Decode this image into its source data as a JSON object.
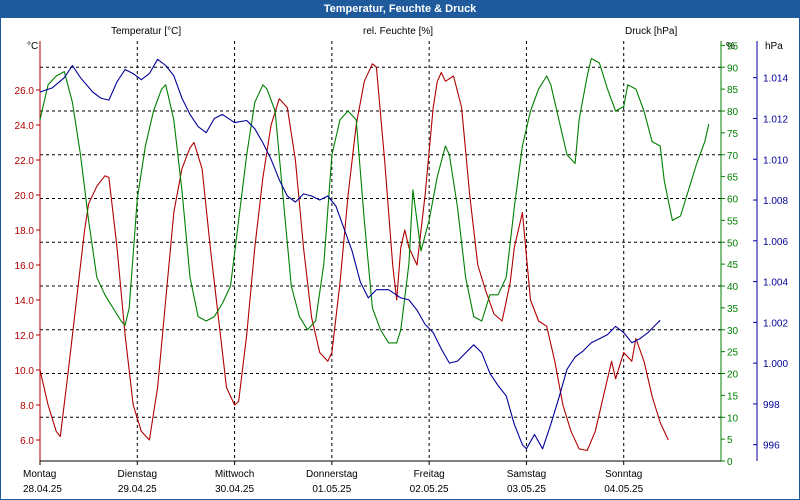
{
  "title": "Temperatur, Feuchte & Druck",
  "colors": {
    "temperature": "#b00000",
    "humidity": "#008000",
    "pressure": "#000099",
    "titlebar": "#1e5a9c"
  },
  "chart_data": {
    "type": "line",
    "title": "Temperatur, Feuchte & Druck",
    "x_unit": "hours since 28.04.25 00:00",
    "x_range": [
      0,
      168
    ],
    "x_days": [
      {
        "weekday": "Montag",
        "date": "28.04.25"
      },
      {
        "weekday": "Dienstag",
        "date": "29.04.25"
      },
      {
        "weekday": "Mittwoch",
        "date": "30.04.25"
      },
      {
        "weekday": "Donnerstag",
        "date": "01.05.25"
      },
      {
        "weekday": "Freitag",
        "date": "02.05.25"
      },
      {
        "weekday": "Samstag",
        "date": "03.05.25"
      },
      {
        "weekday": "Sonntag",
        "date": "04.05.25"
      }
    ],
    "axes": {
      "temperature": {
        "label": "Temperatur [°C]",
        "unit": "°C",
        "range": [
          4.8,
          28.8
        ],
        "ticks": [
          "6.0",
          "8.0",
          "10.0",
          "12.0",
          "14.0",
          "16.0",
          "18.0",
          "20.0",
          "22.0",
          "24.0",
          "26.0"
        ]
      },
      "humidity": {
        "label": "rel. Feuchte [%]",
        "unit": "%",
        "range": [
          0,
          96
        ],
        "ticks": [
          "0",
          "5",
          "10",
          "15",
          "20",
          "25",
          "30",
          "35",
          "40",
          "45",
          "50",
          "55",
          "60",
          "65",
          "70",
          "75",
          "80",
          "85",
          "90",
          "95"
        ]
      },
      "pressure": {
        "label": "Druck [hPa]",
        "unit": "hPa",
        "range": [
          995.2,
          1015.8
        ],
        "ticks": [
          "996",
          "998",
          "1.000",
          "1.002",
          "1.004",
          "1.006",
          "1.008",
          "1.010",
          "1.012",
          "1.014"
        ]
      }
    },
    "series": [
      {
        "name": "Temperatur",
        "axis": "temperature",
        "points": [
          [
            0,
            10
          ],
          [
            2,
            8
          ],
          [
            4,
            6.5
          ],
          [
            5,
            6.2
          ],
          [
            7,
            10
          ],
          [
            9,
            14
          ],
          [
            11,
            18
          ],
          [
            12,
            19.5
          ],
          [
            14,
            20.5
          ],
          [
            16,
            21.1
          ],
          [
            17,
            21
          ],
          [
            19,
            17
          ],
          [
            21,
            12
          ],
          [
            23,
            8
          ],
          [
            25,
            6.5
          ],
          [
            27,
            6
          ],
          [
            29,
            9
          ],
          [
            31,
            14
          ],
          [
            33,
            19
          ],
          [
            35,
            21.5
          ],
          [
            37,
            22.7
          ],
          [
            38,
            23
          ],
          [
            40,
            21.5
          ],
          [
            42,
            17
          ],
          [
            44,
            13
          ],
          [
            46,
            9
          ],
          [
            48,
            8
          ],
          [
            49,
            8.2
          ],
          [
            51,
            12
          ],
          [
            53,
            17
          ],
          [
            55,
            21
          ],
          [
            57,
            24
          ],
          [
            59,
            25.5
          ],
          [
            61,
            25
          ],
          [
            63,
            22
          ],
          [
            65,
            17
          ],
          [
            67,
            13
          ],
          [
            69,
            11
          ],
          [
            71,
            10.5
          ],
          [
            72,
            11
          ],
          [
            74,
            15
          ],
          [
            76,
            20
          ],
          [
            78,
            24
          ],
          [
            80,
            26.5
          ],
          [
            82,
            27.5
          ],
          [
            83,
            27.3
          ],
          [
            85,
            22
          ],
          [
            87,
            16
          ],
          [
            88,
            14
          ],
          [
            89,
            17
          ],
          [
            90,
            18
          ],
          [
            91,
            17
          ],
          [
            93,
            16
          ],
          [
            95,
            20
          ],
          [
            97,
            25
          ],
          [
            98,
            26.5
          ],
          [
            99,
            27
          ],
          [
            100,
            26.5
          ],
          [
            102,
            26.8
          ],
          [
            104,
            25
          ],
          [
            106,
            20
          ],
          [
            108,
            16
          ],
          [
            110,
            14.5
          ],
          [
            112,
            13.2
          ],
          [
            114,
            12.8
          ],
          [
            116,
            15
          ],
          [
            117,
            17
          ],
          [
            119,
            19
          ],
          [
            121,
            14
          ],
          [
            123,
            12.8
          ],
          [
            125,
            12.5
          ],
          [
            127,
            10.5
          ],
          [
            129,
            8
          ],
          [
            131,
            6.5
          ],
          [
            133,
            5.5
          ],
          [
            135,
            5.4
          ],
          [
            137,
            6.5
          ],
          [
            139,
            8.5
          ],
          [
            141,
            10.5
          ],
          [
            142,
            9.5
          ],
          [
            144,
            11
          ],
          [
            146,
            10.5
          ],
          [
            147,
            11.8
          ],
          [
            149,
            10.5
          ],
          [
            151,
            8.5
          ],
          [
            153,
            7
          ],
          [
            155,
            6
          ]
        ]
      },
      {
        "name": "rel. Feuchte",
        "axis": "humidity",
        "points": [
          [
            0,
            78
          ],
          [
            2,
            86
          ],
          [
            4,
            88
          ],
          [
            6,
            89
          ],
          [
            8,
            82
          ],
          [
            10,
            70
          ],
          [
            12,
            55
          ],
          [
            14,
            42
          ],
          [
            16,
            38
          ],
          [
            18,
            35
          ],
          [
            20,
            32
          ],
          [
            21,
            31
          ],
          [
            22,
            35
          ],
          [
            24,
            60
          ],
          [
            26,
            72
          ],
          [
            28,
            80
          ],
          [
            30,
            85
          ],
          [
            31,
            86
          ],
          [
            33,
            78
          ],
          [
            35,
            62
          ],
          [
            37,
            42
          ],
          [
            39,
            33
          ],
          [
            41,
            32
          ],
          [
            43,
            33
          ],
          [
            45,
            36
          ],
          [
            47,
            40
          ],
          [
            49,
            55
          ],
          [
            51,
            70
          ],
          [
            53,
            82
          ],
          [
            55,
            86
          ],
          [
            56,
            85
          ],
          [
            58,
            80
          ],
          [
            60,
            60
          ],
          [
            62,
            40
          ],
          [
            64,
            33
          ],
          [
            66,
            30
          ],
          [
            68,
            32
          ],
          [
            70,
            45
          ],
          [
            72,
            70
          ],
          [
            74,
            78
          ],
          [
            76,
            80
          ],
          [
            78,
            78
          ],
          [
            80,
            55
          ],
          [
            82,
            35
          ],
          [
            84,
            30
          ],
          [
            86,
            27
          ],
          [
            88,
            27
          ],
          [
            89,
            30
          ],
          [
            91,
            45
          ],
          [
            92,
            62
          ],
          [
            94,
            48
          ],
          [
            96,
            55
          ],
          [
            98,
            65
          ],
          [
            100,
            72
          ],
          [
            101,
            70
          ],
          [
            103,
            58
          ],
          [
            105,
            42
          ],
          [
            107,
            33
          ],
          [
            109,
            32
          ],
          [
            111,
            38
          ],
          [
            113,
            38
          ],
          [
            115,
            42
          ],
          [
            117,
            58
          ],
          [
            119,
            72
          ],
          [
            121,
            80
          ],
          [
            123,
            85
          ],
          [
            125,
            88
          ],
          [
            126,
            86
          ],
          [
            128,
            78
          ],
          [
            130,
            70
          ],
          [
            132,
            68
          ],
          [
            133,
            78
          ],
          [
            135,
            88
          ],
          [
            136,
            92
          ],
          [
            138,
            91
          ],
          [
            140,
            85
          ],
          [
            142,
            80
          ],
          [
            144,
            81
          ],
          [
            145,
            86
          ],
          [
            147,
            85
          ],
          [
            149,
            80
          ],
          [
            151,
            73
          ],
          [
            153,
            72
          ],
          [
            154,
            64
          ],
          [
            156,
            55
          ],
          [
            158,
            56
          ],
          [
            160,
            62
          ],
          [
            162,
            68
          ],
          [
            164,
            73
          ],
          [
            165,
            77
          ]
        ]
      },
      {
        "name": "Druck",
        "axis": "pressure",
        "points": [
          [
            0,
            1013.3
          ],
          [
            3,
            1013.5
          ],
          [
            6,
            1014.0
          ],
          [
            8,
            1014.6
          ],
          [
            10,
            1014.0
          ],
          [
            13,
            1013.3
          ],
          [
            15,
            1013.0
          ],
          [
            17,
            1012.9
          ],
          [
            19,
            1013.8
          ],
          [
            21,
            1014.4
          ],
          [
            23,
            1014.2
          ],
          [
            25,
            1013.9
          ],
          [
            27,
            1014.2
          ],
          [
            29,
            1014.9
          ],
          [
            31,
            1014.6
          ],
          [
            33,
            1014.1
          ],
          [
            35,
            1013.0
          ],
          [
            37,
            1012.2
          ],
          [
            39,
            1011.6
          ],
          [
            41,
            1011.3
          ],
          [
            43,
            1012.0
          ],
          [
            45,
            1012.2
          ],
          [
            48,
            1011.8
          ],
          [
            51,
            1011.9
          ],
          [
            53,
            1011.5
          ],
          [
            55,
            1010.8
          ],
          [
            57,
            1010.0
          ],
          [
            59,
            1009.0
          ],
          [
            61,
            1008.2
          ],
          [
            63,
            1007.9
          ],
          [
            65,
            1008.3
          ],
          [
            67,
            1008.2
          ],
          [
            69,
            1008.0
          ],
          [
            71,
            1008.2
          ],
          [
            73,
            1007.7
          ],
          [
            75,
            1006.6
          ],
          [
            77,
            1005.5
          ],
          [
            79,
            1004.0
          ],
          [
            81,
            1003.2
          ],
          [
            83,
            1003.6
          ],
          [
            86,
            1003.6
          ],
          [
            89,
            1003.2
          ],
          [
            91,
            1003.1
          ],
          [
            93,
            1002.6
          ],
          [
            95,
            1001.9
          ],
          [
            97,
            1001.5
          ],
          [
            99,
            1000.7
          ],
          [
            101,
            1000.0
          ],
          [
            103,
            1000.1
          ],
          [
            105,
            1000.5
          ],
          [
            107,
            1000.9
          ],
          [
            109,
            1000.5
          ],
          [
            111,
            999.5
          ],
          [
            113,
            998.9
          ],
          [
            115,
            998.4
          ],
          [
            117,
            997.0
          ],
          [
            119,
            996.0
          ],
          [
            120,
            995.8
          ],
          [
            122,
            996.5
          ],
          [
            124,
            995.8
          ],
          [
            126,
            997.0
          ],
          [
            128,
            998.3
          ],
          [
            130,
            999.7
          ],
          [
            132,
            1000.3
          ],
          [
            134,
            1000.6
          ],
          [
            136,
            1001.0
          ],
          [
            138,
            1001.2
          ],
          [
            140,
            1001.4
          ],
          [
            142,
            1001.8
          ],
          [
            144,
            1001.5
          ],
          [
            146,
            1001.0
          ],
          [
            148,
            1001.2
          ],
          [
            150,
            1001.5
          ],
          [
            152,
            1001.9
          ],
          [
            153,
            1002.1
          ]
        ]
      }
    ]
  }
}
